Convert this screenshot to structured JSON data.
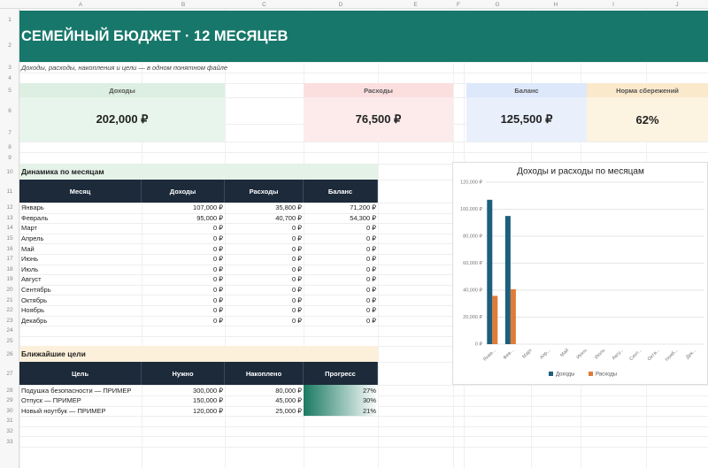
{
  "sheet": {
    "column_headers": [
      "A",
      "B",
      "C",
      "D",
      "E",
      "F",
      "G",
      "H",
      "I",
      "J"
    ],
    "row_numbers": [
      1,
      2,
      3,
      4,
      5,
      6,
      7,
      8,
      9,
      10,
      11,
      12,
      13,
      14,
      15,
      16,
      17,
      18,
      19,
      20,
      21,
      22,
      23,
      24,
      25,
      26,
      27,
      28,
      29,
      30,
      31,
      32,
      33
    ]
  },
  "header": {
    "title": "СЕМЕЙНЫЙ БЮДЖЕТ · 12 МЕСЯЦЕВ",
    "subtitle": "Доходы, расходы, накопления и цели — в одном понятном файле"
  },
  "cards": [
    {
      "label": "Доходы",
      "value": "202,000 ₽"
    },
    {
      "label": "Расходы",
      "value": "76,500 ₽"
    },
    {
      "label": "Баланс",
      "value": "125,500 ₽"
    },
    {
      "label": "Норма сбережений",
      "value": "62%"
    }
  ],
  "monthly": {
    "title": "Динамика по месяцам",
    "columns": [
      "Месяц",
      "Доходы",
      "Расходы",
      "Баланс"
    ],
    "rows": [
      [
        "Январь",
        "107,000 ₽",
        "35,800 ₽",
        "71,200 ₽"
      ],
      [
        "Февраль",
        "95,000 ₽",
        "40,700 ₽",
        "54,300 ₽"
      ],
      [
        "Март",
        "0 ₽",
        "0 ₽",
        "0 ₽"
      ],
      [
        "Апрель",
        "0 ₽",
        "0 ₽",
        "0 ₽"
      ],
      [
        "Май",
        "0 ₽",
        "0 ₽",
        "0 ₽"
      ],
      [
        "Июнь",
        "0 ₽",
        "0 ₽",
        "0 ₽"
      ],
      [
        "Июль",
        "0 ₽",
        "0 ₽",
        "0 ₽"
      ],
      [
        "Август",
        "0 ₽",
        "0 ₽",
        "0 ₽"
      ],
      [
        "Сентябрь",
        "0 ₽",
        "0 ₽",
        "0 ₽"
      ],
      [
        "Октябрь",
        "0 ₽",
        "0 ₽",
        "0 ₽"
      ],
      [
        "Ноябрь",
        "0 ₽",
        "0 ₽",
        "0 ₽"
      ],
      [
        "Декабрь",
        "0 ₽",
        "0 ₽",
        "0 ₽"
      ]
    ]
  },
  "goals": {
    "title": "Ближайшие цели",
    "columns": [
      "Цель",
      "Нужно",
      "Накоплено",
      "Прогресс"
    ],
    "rows": [
      [
        "Подушка безопасности — ПРИМЕР",
        "300,000 ₽",
        "80,000 ₽",
        "27%"
      ],
      [
        "Отпуск — ПРИМЕР",
        "150,000 ₽",
        "45,000 ₽",
        "30%"
      ],
      [
        "Новый ноутбук — ПРИМЕР",
        "120,000 ₽",
        "25,000 ₽",
        "21%"
      ]
    ]
  },
  "chart_data": {
    "type": "bar",
    "title": "Доходы и расходы по месяцам",
    "categories": [
      "Янва...",
      "Фев...",
      "Март",
      "Апр...",
      "Май",
      "Июнь",
      "Июль",
      "Авгу...",
      "Сент...",
      "Октя...",
      "Нояб...",
      "Дек..."
    ],
    "series": [
      {
        "name": "Доходы",
        "color": "#1d5f7c",
        "values": [
          107000,
          95000,
          0,
          0,
          0,
          0,
          0,
          0,
          0,
          0,
          0,
          0
        ]
      },
      {
        "name": "Расходы",
        "color": "#e07b39",
        "values": [
          35800,
          40700,
          0,
          0,
          0,
          0,
          0,
          0,
          0,
          0,
          0,
          0
        ]
      }
    ],
    "ylim": [
      0,
      120000
    ],
    "yticks": [
      {
        "value": 0,
        "label": "0 ₽"
      },
      {
        "value": 20000,
        "label": "20,000 ₽"
      },
      {
        "value": 40000,
        "label": "40,000 ₽"
      },
      {
        "value": 60000,
        "label": "60,000 ₽"
      },
      {
        "value": 80000,
        "label": "80,000 ₽"
      },
      {
        "value": 100000,
        "label": "100,000 ₽"
      },
      {
        "value": 120000,
        "label": "120,000 ₽"
      }
    ],
    "grid": true,
    "legend": "bottom"
  }
}
